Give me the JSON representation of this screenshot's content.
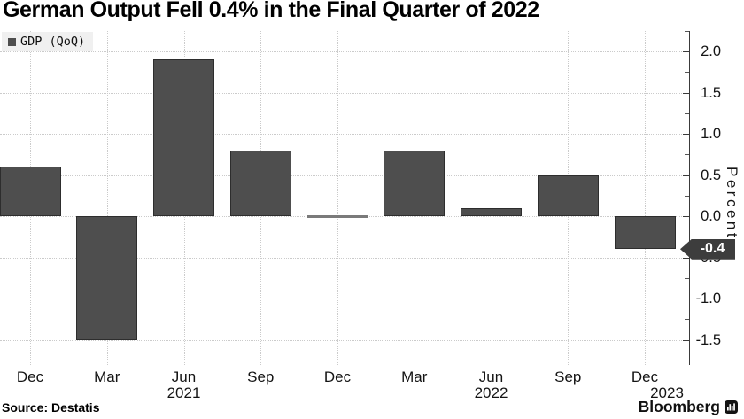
{
  "title": "German Output Fell 0.4% in the Final Quarter of 2022",
  "legend": {
    "marker_icon": "dark-square-icon",
    "label": "GDP (QoQ)"
  },
  "chart_data": {
    "type": "bar",
    "categories": [
      "Dec",
      "Mar",
      "Jun",
      "Sep",
      "Dec",
      "Mar",
      "Jun",
      "Sep",
      "Dec"
    ],
    "series": [
      {
        "name": "GDP (QoQ)",
        "values": [
          0.6,
          -1.5,
          1.9,
          0.8,
          0.0,
          0.8,
          0.1,
          0.5,
          -0.4
        ]
      }
    ],
    "year_labels": [
      {
        "text": "2021",
        "anchor_index": 2
      },
      {
        "text": "2022",
        "anchor_index": 6
      },
      {
        "text": "2023",
        "x": 753
      }
    ],
    "title": "German Output Fell 0.4% in the Final Quarter of 2022",
    "xlabel": "",
    "ylabel": "Percent",
    "ylim": [
      -1.78,
      2.25
    ],
    "y_major_ticks": [
      "2.0",
      "1.5",
      "1.0",
      "0.5",
      "0.0",
      "-0.5",
      "-1.0",
      "-1.5"
    ],
    "y_minor_ticks": [
      2.25,
      1.75,
      1.25,
      0.75,
      0.25,
      -0.25,
      -0.75,
      -1.25,
      -1.75
    ],
    "grid": true,
    "legend_position": "top-left",
    "axis_position": "right",
    "callout": {
      "value": -0.4,
      "label": "-0.4"
    },
    "colors": {
      "bar": "#4e4e4e",
      "bar_border": "#2d2d2d",
      "zero_bar": "#7a7a7a",
      "grid": "#cbcbcb",
      "axis": "#3a3a3a",
      "callout_bg": "#3d3d3d",
      "callout_text": "#ffffff",
      "legend_bg": "#f0f0f0"
    }
  },
  "footer": {
    "source": "Source: Destatis",
    "brand": "Bloomberg",
    "brand_icon": "bloomberg-terminal-icon"
  }
}
